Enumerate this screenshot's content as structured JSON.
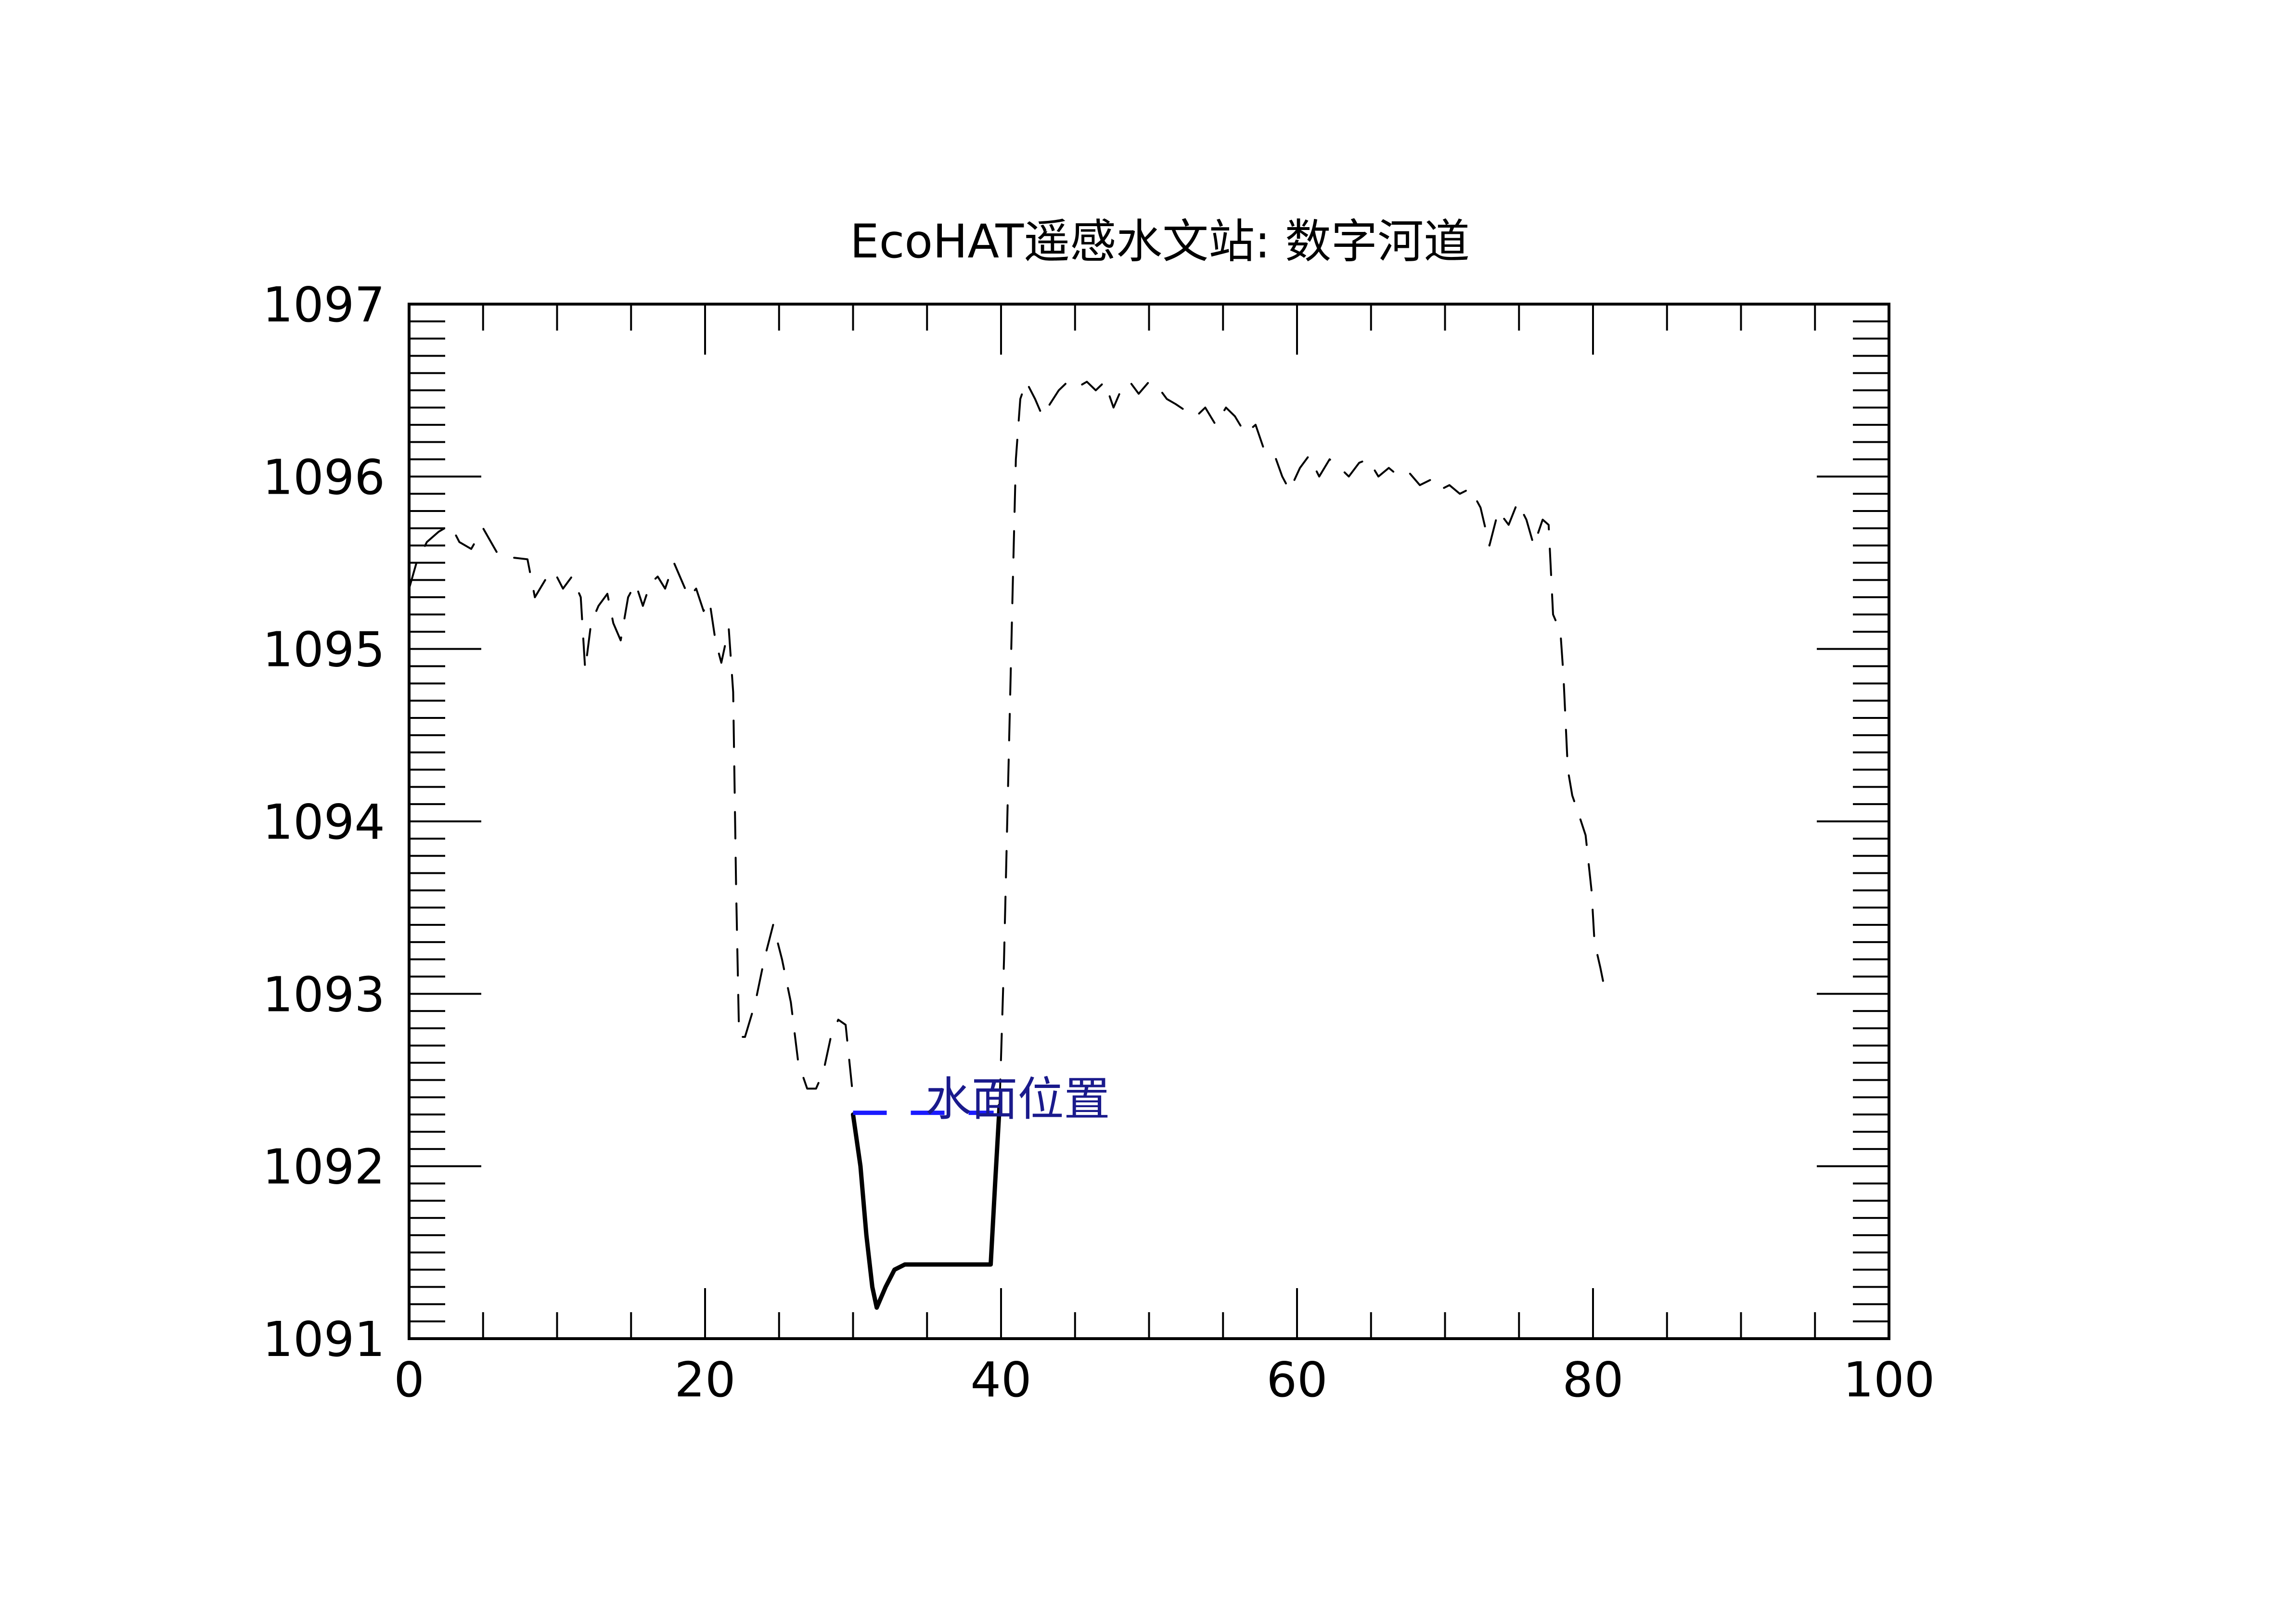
{
  "colors": {
    "axis": "#000000",
    "profile": "#000000",
    "water": "#1a1aff",
    "legend_text": "#1a1a8c",
    "background": "#ffffff"
  },
  "chart_data": {
    "type": "line",
    "title": "EcoHAT遥感水文站: 数字河道",
    "xlabel": "",
    "ylabel": "",
    "xlim": [
      0,
      100
    ],
    "ylim": [
      1091,
      1097
    ],
    "x_ticks": [
      0,
      20,
      40,
      60,
      80,
      100
    ],
    "y_ticks": [
      1091,
      1092,
      1093,
      1094,
      1095,
      1096,
      1097
    ],
    "x_minor_step": 5,
    "y_minor_step": 0.1,
    "grid": false,
    "legend_position": "inside, near water line",
    "series": [
      {
        "key": "profile_dashed",
        "style": "dashed",
        "points": [
          [
            0,
            1095.35
          ],
          [
            0.5,
            1095.5
          ],
          [
            1.2,
            1095.62
          ],
          [
            2,
            1095.68
          ],
          [
            2.8,
            1095.72
          ],
          [
            3.4,
            1095.62
          ],
          [
            4.2,
            1095.58
          ],
          [
            5,
            1095.7
          ],
          [
            6,
            1095.55
          ],
          [
            7,
            1095.53
          ],
          [
            8,
            1095.52
          ],
          [
            8.5,
            1095.3
          ],
          [
            9.2,
            1095.4
          ],
          [
            9.8,
            1095.45
          ],
          [
            10.4,
            1095.35
          ],
          [
            11,
            1095.42
          ],
          [
            11.6,
            1095.3
          ],
          [
            11.9,
            1094.88
          ],
          [
            12.3,
            1095.15
          ],
          [
            12.8,
            1095.25
          ],
          [
            13.4,
            1095.32
          ],
          [
            13.8,
            1095.15
          ],
          [
            14.3,
            1095.05
          ],
          [
            14.8,
            1095.3
          ],
          [
            15.3,
            1095.38
          ],
          [
            15.8,
            1095.25
          ],
          [
            16.3,
            1095.38
          ],
          [
            16.8,
            1095.42
          ],
          [
            17.3,
            1095.35
          ],
          [
            17.9,
            1095.5
          ],
          [
            18.4,
            1095.4
          ],
          [
            18.9,
            1095.3
          ],
          [
            19.4,
            1095.35
          ],
          [
            19.9,
            1095.22
          ],
          [
            20.3,
            1095.28
          ],
          [
            20.7,
            1095.05
          ],
          [
            21.1,
            1094.92
          ],
          [
            21.6,
            1095.12
          ],
          [
            21.9,
            1094.75
          ],
          [
            22.1,
            1093.6
          ],
          [
            22.3,
            1092.75
          ],
          [
            22.7,
            1092.75
          ],
          [
            23.4,
            1092.95
          ],
          [
            24.0,
            1093.2
          ],
          [
            24.6,
            1093.4
          ],
          [
            25.2,
            1093.2
          ],
          [
            25.8,
            1092.95
          ],
          [
            26.3,
            1092.6
          ],
          [
            26.9,
            1092.45
          ],
          [
            27.5,
            1092.45
          ],
          [
            28.0,
            1092.55
          ],
          [
            28.5,
            1092.75
          ],
          [
            29.0,
            1092.85
          ],
          [
            29.5,
            1092.82
          ],
          [
            30.0,
            1092.4
          ]
        ]
      },
      {
        "key": "profile_solid",
        "style": "solid",
        "points": [
          [
            30.0,
            1092.3
          ],
          [
            30.5,
            1092.0
          ],
          [
            30.9,
            1091.6
          ],
          [
            31.3,
            1091.3
          ],
          [
            31.6,
            1091.18
          ],
          [
            32.2,
            1091.3
          ],
          [
            32.8,
            1091.4
          ],
          [
            33.5,
            1091.43
          ],
          [
            35,
            1091.43
          ],
          [
            37,
            1091.43
          ],
          [
            39.3,
            1091.43
          ],
          [
            39.6,
            1091.9
          ],
          [
            39.9,
            1092.35
          ]
        ]
      },
      {
        "key": "profile_dashed_right",
        "style": "dashed",
        "points": [
          [
            39.9,
            1092.35
          ],
          [
            40.2,
            1093.2
          ],
          [
            40.5,
            1094.3
          ],
          [
            40.8,
            1095.4
          ],
          [
            41.0,
            1096.1
          ],
          [
            41.3,
            1096.45
          ],
          [
            41.7,
            1096.55
          ],
          [
            42.3,
            1096.45
          ],
          [
            42.8,
            1096.35
          ],
          [
            43.3,
            1096.42
          ],
          [
            43.9,
            1096.5
          ],
          [
            44.5,
            1096.55
          ],
          [
            45.2,
            1096.52
          ],
          [
            45.8,
            1096.55
          ],
          [
            46.4,
            1096.5
          ],
          [
            47.0,
            1096.55
          ],
          [
            47.6,
            1096.4
          ],
          [
            48.1,
            1096.5
          ],
          [
            48.7,
            1096.55
          ],
          [
            49.3,
            1096.48
          ],
          [
            50,
            1096.55
          ],
          [
            50.6,
            1096.52
          ],
          [
            51.2,
            1096.45
          ],
          [
            51.8,
            1096.42
          ],
          [
            52.5,
            1096.38
          ],
          [
            53.2,
            1096.35
          ],
          [
            53.8,
            1096.4
          ],
          [
            54.5,
            1096.3
          ],
          [
            55.2,
            1096.4
          ],
          [
            55.8,
            1096.35
          ],
          [
            56.5,
            1096.25
          ],
          [
            57.2,
            1096.3
          ],
          [
            57.8,
            1096.15
          ],
          [
            58.5,
            1096.12
          ],
          [
            59,
            1096.0
          ],
          [
            59.5,
            1095.92
          ],
          [
            60.2,
            1096.05
          ],
          [
            60.8,
            1096.12
          ],
          [
            61.5,
            1096.0
          ],
          [
            62.2,
            1096.1
          ],
          [
            62.9,
            1096.05
          ],
          [
            63.5,
            1096.0
          ],
          [
            64.2,
            1096.08
          ],
          [
            64.8,
            1096.1
          ],
          [
            65.5,
            1096.0
          ],
          [
            66.2,
            1096.05
          ],
          [
            66.9,
            1096.0
          ],
          [
            67.6,
            1096.02
          ],
          [
            68.3,
            1095.95
          ],
          [
            69.0,
            1095.98
          ],
          [
            69.6,
            1095.92
          ],
          [
            70.3,
            1095.95
          ],
          [
            71.0,
            1095.9
          ],
          [
            71.7,
            1095.93
          ],
          [
            72.4,
            1095.82
          ],
          [
            73.0,
            1095.6
          ],
          [
            73.6,
            1095.8
          ],
          [
            74.3,
            1095.72
          ],
          [
            74.9,
            1095.85
          ],
          [
            75.5,
            1095.75
          ],
          [
            76.0,
            1095.6
          ],
          [
            76.6,
            1095.75
          ],
          [
            77.0,
            1095.72
          ],
          [
            77.3,
            1095.2
          ],
          [
            77.8,
            1095.1
          ],
          [
            78.0,
            1094.85
          ],
          [
            78.3,
            1094.3
          ],
          [
            78.6,
            1094.15
          ],
          [
            79.0,
            1094.05
          ],
          [
            79.5,
            1093.92
          ],
          [
            79.9,
            1093.6
          ],
          [
            80.1,
            1093.3
          ],
          [
            80.5,
            1093.15
          ],
          [
            80.9,
            1092.98
          ]
        ]
      }
    ],
    "water_level": {
      "name": "水面位置",
      "y": 1092.31,
      "x_start": 30,
      "x_end": 39.5
    },
    "ytick_labels": [
      "1091",
      "1092",
      "1093",
      "1094",
      "1095",
      "1096",
      "1097"
    ],
    "xtick_labels": [
      "0",
      "20",
      "40",
      "60",
      "80",
      "100"
    ]
  }
}
